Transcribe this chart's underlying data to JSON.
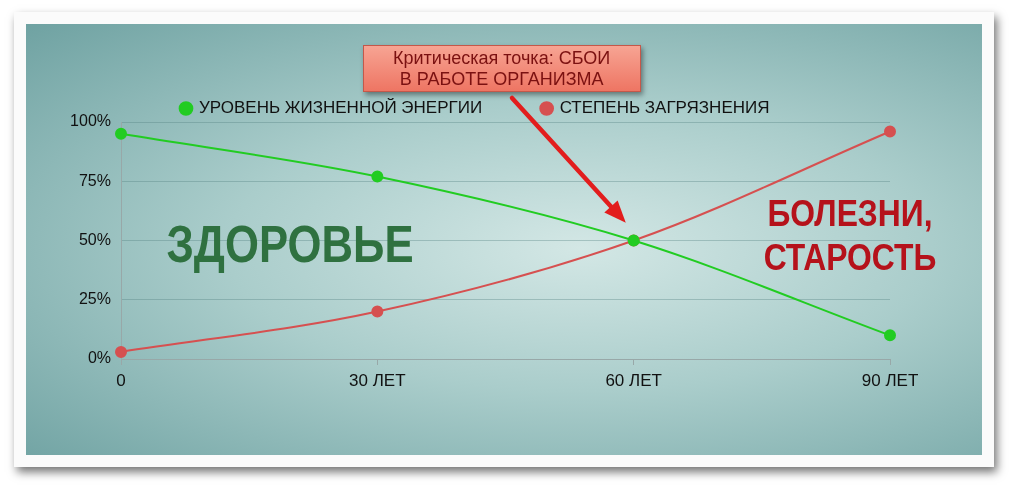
{
  "chart_data": {
    "type": "line",
    "categories": [
      "0",
      "30 ЛЕТ",
      "60 ЛЕТ",
      "90 ЛЕТ"
    ],
    "series": [
      {
        "name": "УРОВЕНЬ ЖИЗНЕННОЙ ЭНЕРГИИ",
        "color": "#22cc22",
        "values": [
          95,
          77,
          50,
          10
        ]
      },
      {
        "name": "СТЕПЕНЬ ЗАГРЯЗНЕНИЯ",
        "color": "#d65050",
        "values": [
          3,
          20,
          50,
          96
        ]
      }
    ],
    "ylim": [
      0,
      100
    ],
    "yticks": [
      {
        "value": 0,
        "label": "0%"
      },
      {
        "value": 25,
        "label": "25%"
      },
      {
        "value": 50,
        "label": "50%"
      },
      {
        "value": 75,
        "label": "75%"
      },
      {
        "value": 100,
        "label": "100%"
      }
    ],
    "grid": "y",
    "legend": "top",
    "marker": "circle",
    "line_style": "solid",
    "annotations": [
      "Критическая точка: СБОИ В РАБОТЕ ОРГАНИЗМА",
      "ЗДОРОВЬЕ",
      "БОЛЕЗНИ, СТАРОСТЬ"
    ]
  }
}
